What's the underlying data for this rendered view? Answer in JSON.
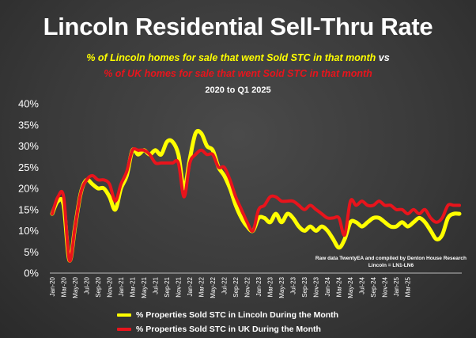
{
  "header": {
    "title": "Lincoln Residential Sell-Thru Rate",
    "subtitle_yellow": "% of Lincoln homes for sale that went Sold STC in that month",
    "subtitle_vs": "vs",
    "subtitle_red": "% of UK homes for sale that went Sold STC in that month",
    "period": "2020 to Q1 2025"
  },
  "note": {
    "line1": "Raw data TwentyEA and compiled by Denton House Research",
    "line2": "Lincoln = LN1-LN6"
  },
  "colors": {
    "lincoln": "#ffff00",
    "uk": "#e8141c"
  },
  "chart_data": {
    "type": "line",
    "ylim": [
      0,
      40
    ],
    "yticks": [
      "0%",
      "5%",
      "10%",
      "15%",
      "20%",
      "25%",
      "30%",
      "35%",
      "40%"
    ],
    "grid": false,
    "legend_position": "bottom",
    "xtick_labels": [
      "Jan-20",
      "Mar-20",
      "May-20",
      "Jul-20",
      "Sep-20",
      "Nov-20",
      "Jan-21",
      "Mar-21",
      "May-21",
      "Jul-21",
      "Sep-21",
      "Nov-21",
      "Jan-22",
      "Mar-22",
      "May-22",
      "Jul-22",
      "Sep-22",
      "Nov-22",
      "Jan-23",
      "Mar-23",
      "May-23",
      "Jul-23",
      "Sep-23",
      "Nov-23",
      "Jan-24",
      "Mar-24",
      "May-24",
      "Jul-24",
      "Sep-24",
      "Nov-24",
      "Jan-25",
      "Mar-25"
    ],
    "series": [
      {
        "name": "% Properties Sold STC in Lincoln During the Month",
        "color": "#ffff00",
        "values": [
          14,
          17,
          16,
          3,
          11,
          19,
          22,
          21,
          20,
          20,
          18,
          15,
          20,
          23,
          29,
          28,
          29,
          28,
          29,
          28,
          31,
          31,
          28,
          20,
          27,
          33,
          33,
          30,
          29,
          25,
          23,
          20,
          16,
          13,
          11,
          10,
          13,
          13,
          12,
          14,
          12,
          14,
          13,
          11,
          10,
          11,
          10,
          11,
          10,
          8,
          6,
          8,
          12,
          12,
          11,
          12,
          13,
          13,
          12,
          11,
          11,
          12,
          11,
          12,
          13,
          12,
          10,
          8,
          9,
          13,
          14,
          14
        ]
      },
      {
        "name": "% Properties Sold STC in UK During the Month",
        "color": "#e8141c",
        "values": [
          14,
          18,
          18,
          3,
          11,
          19,
          22,
          23,
          22,
          22,
          21,
          17,
          21,
          24,
          29,
          29,
          29,
          28,
          26,
          26,
          26,
          26,
          26,
          18,
          26,
          28,
          29,
          28,
          28,
          25,
          25,
          22,
          18,
          15,
          12,
          10,
          15,
          16,
          18,
          18,
          17,
          17,
          17,
          16,
          15,
          16,
          15,
          14,
          13,
          13,
          13,
          9,
          17,
          16,
          17,
          16,
          16,
          17,
          16,
          16,
          15,
          15,
          14,
          15,
          14,
          15,
          13,
          12,
          13,
          16,
          16,
          16
        ]
      }
    ]
  }
}
